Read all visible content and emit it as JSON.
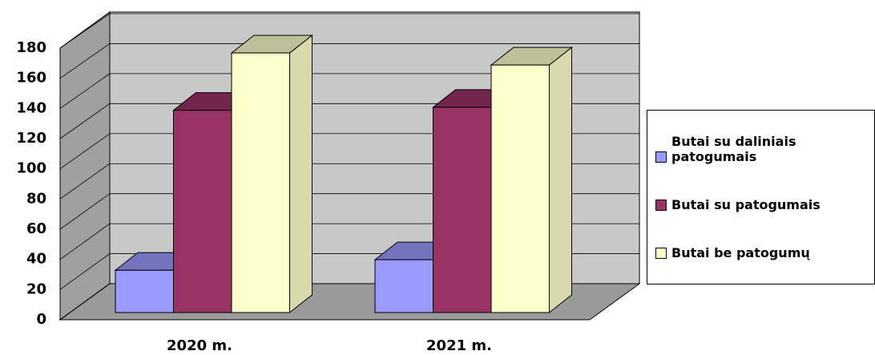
{
  "chart_data": {
    "type": "bar",
    "categories": [
      "2020 m.",
      "2021 m."
    ],
    "series": [
      {
        "name": "Butai su daliniais patogumais",
        "color": "#9999ff",
        "values": [
          28,
          35
        ]
      },
      {
        "name": "Butai su patogumais",
        "color": "#993366",
        "values": [
          134,
          136
        ]
      },
      {
        "name": "Butai be patogumų",
        "color": "#ffffcc",
        "values": [
          172,
          164
        ]
      }
    ],
    "ylim": [
      0,
      180
    ],
    "yticks": [
      0,
      20,
      40,
      60,
      80,
      100,
      120,
      140,
      160,
      180
    ],
    "grid": true,
    "legend": "right"
  }
}
